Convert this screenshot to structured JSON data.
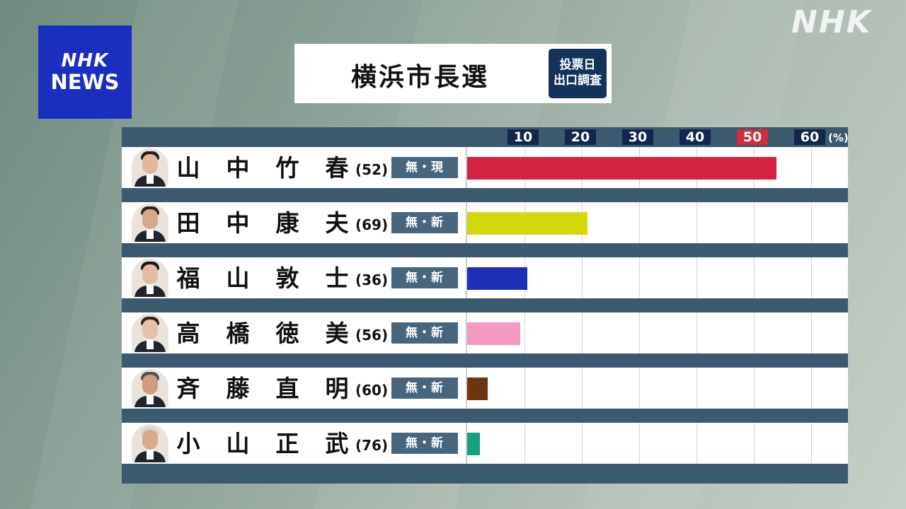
{
  "header": {
    "brand_badge": {
      "line1": "NHK",
      "line2": "NEWS"
    },
    "watermark": "NHK",
    "title": "横浜市長選",
    "exit_poll_badge": {
      "line1": "投票日",
      "line2": "出口調査"
    }
  },
  "chart_data": {
    "type": "bar",
    "orientation": "horizontal",
    "title": "横浜市長選",
    "xlim": [
      0,
      60
    ],
    "ticks": [
      "10",
      "20",
      "30",
      "40",
      "50",
      "60"
    ],
    "highlight_tick": "50",
    "unit": "(%)",
    "grid": true,
    "categories": [
      "山中竹春",
      "田中康夫",
      "福山敦士",
      "高橋徳美",
      "斉藤直明",
      "小山正武"
    ],
    "values": [
      54,
      21,
      10.5,
      9.2,
      3.6,
      2.2
    ],
    "colors": [
      "#d42343",
      "#d4d80a",
      "#1e2fb7",
      "#f29ac2",
      "#6b3510",
      "#17a080"
    ]
  },
  "candidates": [
    {
      "name": [
        "山",
        "中",
        "竹",
        "春"
      ],
      "age": "(52)",
      "party": "無・現",
      "hair": "#231c18",
      "face": "#e1b89e"
    },
    {
      "name": [
        "田",
        "中",
        "康",
        "夫"
      ],
      "age": "(69)",
      "party": "無・新",
      "hair": "#2c2622",
      "face": "#d8a88c"
    },
    {
      "name": [
        "福",
        "山",
        "敦",
        "士"
      ],
      "age": "(36)",
      "party": "無・新",
      "hair": "#1d1815",
      "face": "#e3bca3"
    },
    {
      "name": [
        "高",
        "橋",
        "徳",
        "美"
      ],
      "age": "(56)",
      "party": "無・新",
      "hair": "#3a2318",
      "face": "#e6c0a8"
    },
    {
      "name": [
        "斉",
        "藤",
        "直",
        "明"
      ],
      "age": "(60)",
      "party": "無・新",
      "hair": "#55504b",
      "face": "#cf9d80"
    },
    {
      "name": [
        "小",
        "山",
        "正",
        "武"
      ],
      "age": "(76)",
      "party": "無・新",
      "hair": "#d8d6d2",
      "face": "#d9aa8d"
    }
  ]
}
